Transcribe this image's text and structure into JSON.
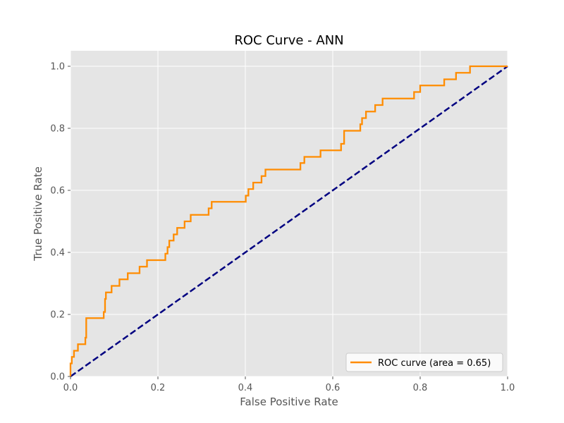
{
  "colors": {
    "background": "#e5e5e5",
    "grid": "#ffffff",
    "roc": "#ff8c00",
    "diagonal": "#000080",
    "legend_border": "#cccccc"
  },
  "chart_data": {
    "type": "line",
    "title": "ROC Curve - ANN",
    "xlabel": "False Positive Rate",
    "ylabel": "True Positive Rate",
    "xlim": [
      0.0,
      1.0
    ],
    "ylim": [
      0.0,
      1.05
    ],
    "x_ticks": [
      "0.0",
      "0.2",
      "0.4",
      "0.6",
      "0.8",
      "1.0"
    ],
    "y_ticks": [
      "0.0",
      "0.2",
      "0.4",
      "0.6",
      "0.8",
      "1.0"
    ],
    "grid": true,
    "legend_position": "lower-right",
    "series": [
      {
        "name": "ROC curve (area = 0.65)",
        "style": "solid",
        "color": "#ff8c00",
        "x": [
          0.0,
          0.0,
          0.003,
          0.003,
          0.008,
          0.008,
          0.017,
          0.017,
          0.034,
          0.034,
          0.036,
          0.036,
          0.076,
          0.076,
          0.079,
          0.079,
          0.081,
          0.081,
          0.094,
          0.094,
          0.112,
          0.112,
          0.131,
          0.131,
          0.158,
          0.158,
          0.175,
          0.175,
          0.217,
          0.217,
          0.222,
          0.222,
          0.226,
          0.226,
          0.236,
          0.236,
          0.244,
          0.244,
          0.261,
          0.261,
          0.275,
          0.275,
          0.316,
          0.316,
          0.323,
          0.323,
          0.401,
          0.401,
          0.407,
          0.407,
          0.418,
          0.418,
          0.437,
          0.437,
          0.446,
          0.446,
          0.526,
          0.526,
          0.535,
          0.535,
          0.572,
          0.572,
          0.619,
          0.619,
          0.626,
          0.626,
          0.663,
          0.663,
          0.667,
          0.667,
          0.676,
          0.676,
          0.697,
          0.697,
          0.714,
          0.714,
          0.786,
          0.786,
          0.8,
          0.8,
          0.855,
          0.855,
          0.882,
          0.882,
          0.914,
          0.914,
          1.0
        ],
        "y": [
          0.0,
          0.042,
          0.042,
          0.063,
          0.063,
          0.083,
          0.083,
          0.104,
          0.104,
          0.125,
          0.125,
          0.188,
          0.188,
          0.208,
          0.208,
          0.25,
          0.25,
          0.271,
          0.271,
          0.292,
          0.292,
          0.313,
          0.313,
          0.333,
          0.333,
          0.354,
          0.354,
          0.375,
          0.375,
          0.396,
          0.396,
          0.417,
          0.417,
          0.438,
          0.438,
          0.458,
          0.458,
          0.479,
          0.479,
          0.5,
          0.5,
          0.521,
          0.521,
          0.542,
          0.542,
          0.563,
          0.563,
          0.583,
          0.583,
          0.604,
          0.604,
          0.625,
          0.625,
          0.646,
          0.646,
          0.667,
          0.667,
          0.688,
          0.688,
          0.708,
          0.708,
          0.729,
          0.729,
          0.75,
          0.75,
          0.792,
          0.792,
          0.813,
          0.813,
          0.833,
          0.833,
          0.854,
          0.854,
          0.875,
          0.875,
          0.896,
          0.896,
          0.917,
          0.917,
          0.938,
          0.938,
          0.958,
          0.958,
          0.979,
          0.979,
          1.0,
          1.0
        ]
      },
      {
        "name": "",
        "style": "dashed",
        "color": "#000080",
        "x": [
          0.0,
          1.0
        ],
        "y": [
          0.0,
          1.0
        ]
      }
    ]
  }
}
